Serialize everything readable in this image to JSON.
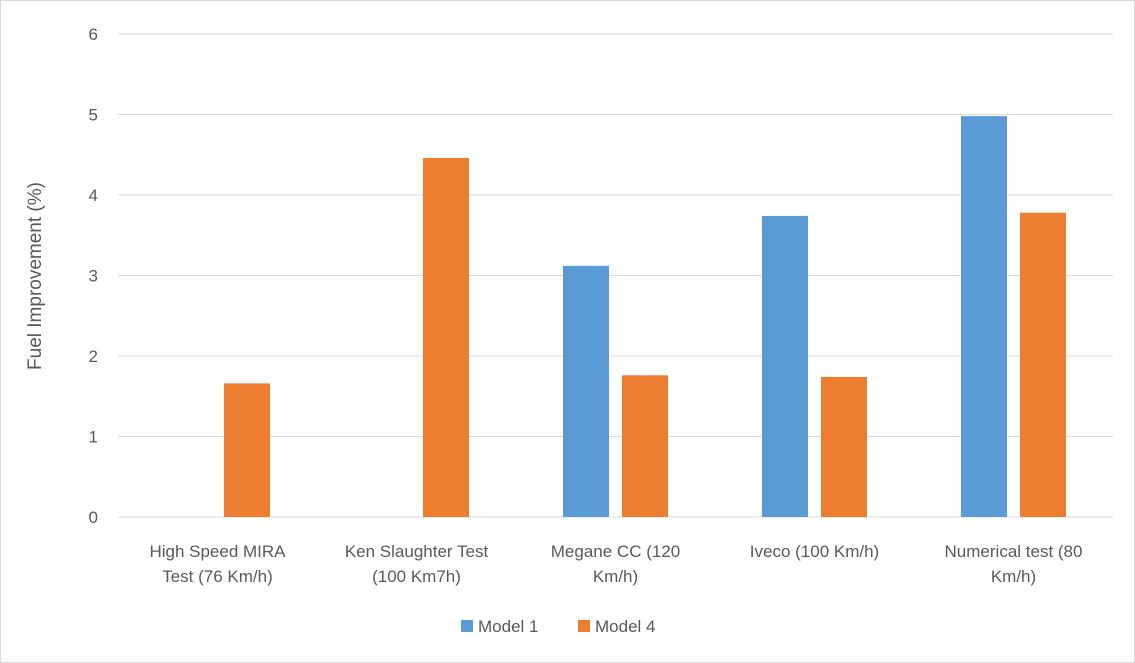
{
  "chart_data": {
    "type": "bar",
    "title": "",
    "xlabel": "",
    "ylabel": "Fuel Improvement (%)",
    "ylim": [
      0,
      6
    ],
    "yticks": [
      0,
      1,
      2,
      3,
      4,
      5,
      6
    ],
    "grid": true,
    "legend_position": "bottom",
    "categories": [
      [
        "High Speed MIRA",
        "Test (76 Km/h)"
      ],
      [
        "Ken Slaughter Test",
        "(100 Km7h)"
      ],
      [
        "Megane CC (120",
        "Km/h)"
      ],
      [
        "Iveco (100 Km/h)"
      ],
      [
        "Numerical test (80",
        "Km/h)"
      ]
    ],
    "series": [
      {
        "name": "Model 1",
        "color": "#5b9bd5",
        "values": [
          null,
          null,
          3.12,
          3.74,
          4.98
        ]
      },
      {
        "name": "Model 4",
        "color": "#ed7d31",
        "values": [
          1.66,
          4.46,
          1.76,
          1.74,
          3.78
        ]
      }
    ]
  }
}
